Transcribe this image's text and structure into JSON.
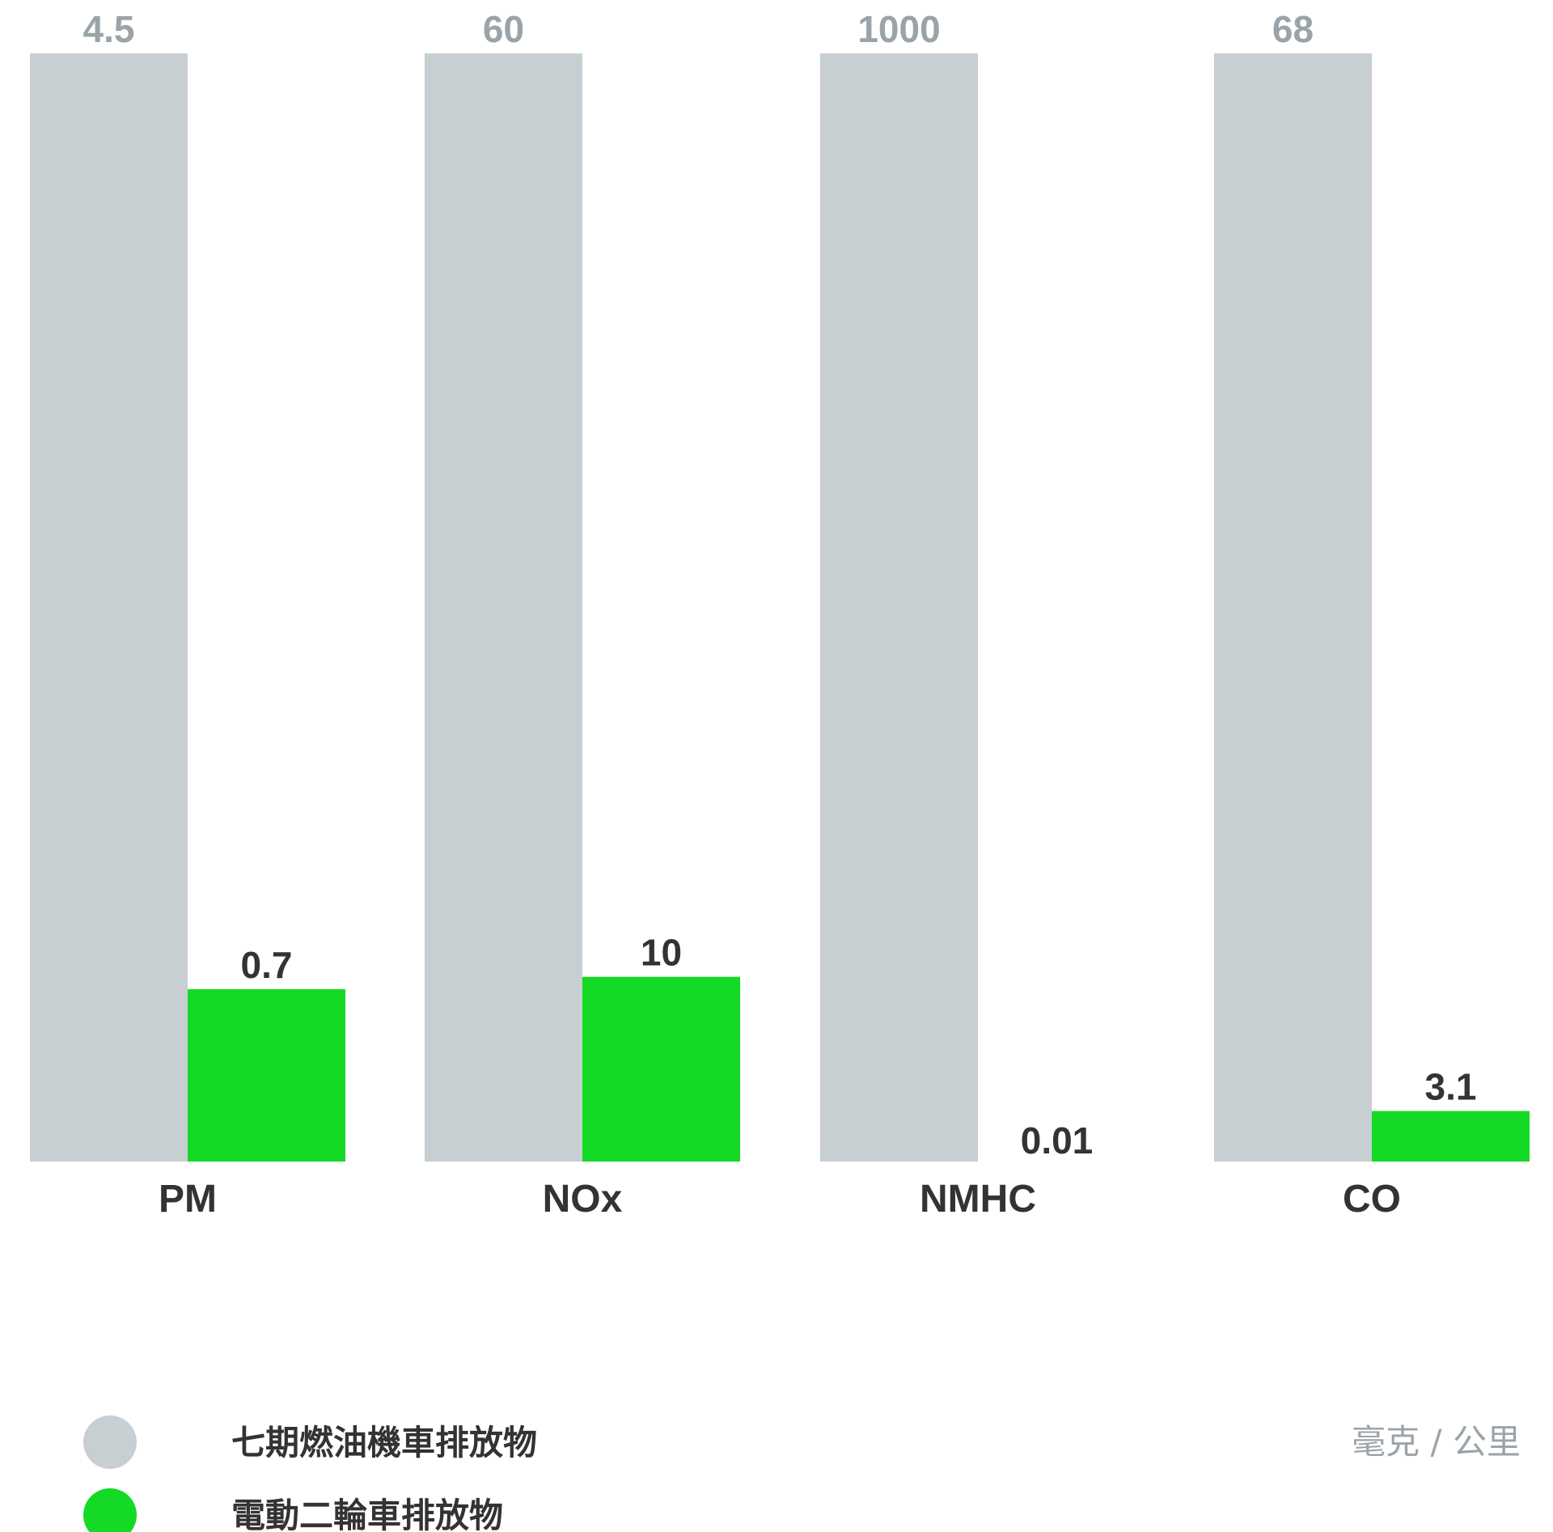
{
  "chart_data": {
    "type": "bar",
    "categories": [
      "PM",
      "NOx",
      "NMHC",
      "CO"
    ],
    "series": [
      {
        "name": "七期燃油機車排放物",
        "color": "#c7cfd3",
        "label_color": "#9aa3a8",
        "values": [
          4.5,
          60,
          1000,
          68
        ],
        "value_labels": [
          "4.5",
          "60",
          "1000",
          "68"
        ]
      },
      {
        "name": "電動二輪車排放物",
        "color": "#14d925",
        "label_color": "#333333",
        "values": [
          0.7,
          10,
          0.01,
          3.1
        ],
        "value_labels": [
          "0.7",
          "10",
          "0.01",
          "3.1"
        ]
      }
    ],
    "unit": "毫克 / 公里",
    "legend_position": "bottom-left",
    "grid": false
  }
}
